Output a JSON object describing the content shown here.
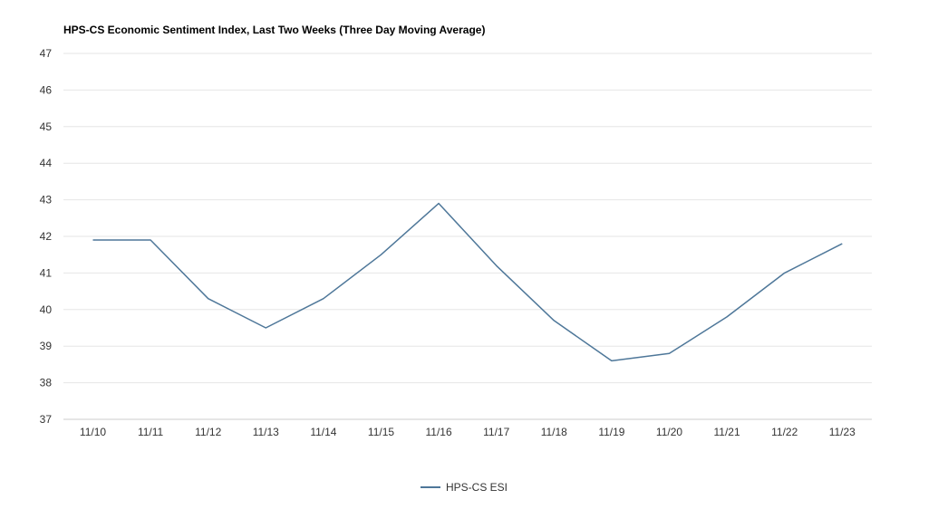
{
  "chart_data": {
    "type": "line",
    "title": "HPS-CS Economic Sentiment Index, Last Two Weeks (Three Day Moving Average)",
    "xlabel": "",
    "ylabel": "",
    "categories": [
      "11/10",
      "11/11",
      "11/12",
      "11/13",
      "11/14",
      "11/15",
      "11/16",
      "11/17",
      "11/18",
      "11/19",
      "11/20",
      "11/21",
      "11/22",
      "11/23"
    ],
    "series": [
      {
        "name": "HPS-CS ESI",
        "color": "#4e7799",
        "values": [
          41.9,
          41.9,
          40.3,
          39.5,
          40.3,
          41.5,
          42.9,
          41.2,
          39.7,
          38.6,
          38.8,
          39.8,
          41.0,
          41.8
        ]
      }
    ],
    "ylim": [
      37,
      47
    ],
    "yticks": [
      37,
      38,
      39,
      40,
      41,
      42,
      43,
      44,
      45,
      46,
      47
    ],
    "grid": true,
    "legend_position": "bottom-center"
  }
}
